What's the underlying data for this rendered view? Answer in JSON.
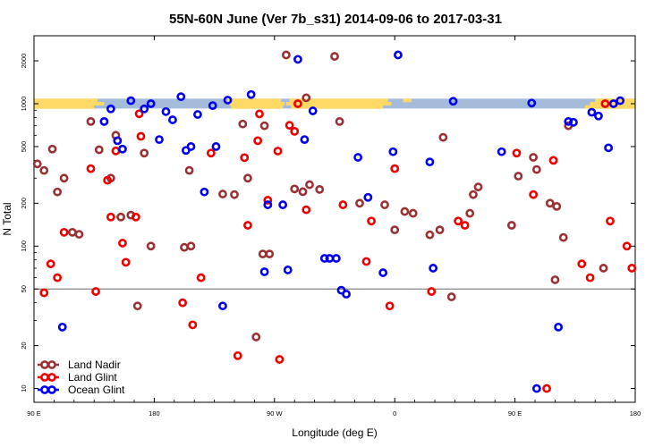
{
  "chart_data": {
    "type": "scatter",
    "title": "55N-60N June (Ver 7b_s31)   2014-09-06 to 2017-03-31",
    "xlabel": "Longitude (deg E)",
    "ylabel": "N Total",
    "xlim": [
      0,
      360
    ],
    "ylim_log": [
      8,
      3000
    ],
    "x_ticks": [
      {
        "value": 0,
        "label": "90 E"
      },
      {
        "value": 72,
        "label": "180"
      },
      {
        "value": 144,
        "label": "90 W"
      },
      {
        "value": 216,
        "label": "0"
      },
      {
        "value": 288,
        "label": "90 E"
      },
      {
        "value": 360,
        "label": "180"
      }
    ],
    "y_ticks": [
      {
        "value": 10,
        "label": "10"
      },
      {
        "value": 20,
        "label": "20"
      },
      {
        "value": 50,
        "label": "50"
      },
      {
        "value": 100,
        "label": "100"
      },
      {
        "value": 200,
        "label": "200"
      },
      {
        "value": 500,
        "label": "500"
      },
      {
        "value": 1000,
        "label": "1000"
      },
      {
        "value": 2000,
        "label": "2000"
      }
    ],
    "reference_line": 50,
    "land_band": {
      "y_range": [
        925,
        1085
      ],
      "land_color": "#FFD966",
      "ocean_color": "#A4BCD9",
      "land_x_ranges": [
        [
          0,
          38
        ],
        [
          0,
          42
        ],
        [
          0,
          36
        ],
        [
          116,
          148
        ],
        [
          117,
          150
        ],
        [
          118,
          149
        ],
        [
          153,
          212
        ],
        [
          151,
          214
        ],
        [
          154,
          209
        ],
        [
          221,
          226
        ],
        [
          333,
          360
        ],
        [
          330,
          360
        ],
        [
          336,
          360
        ]
      ]
    },
    "series": [
      {
        "name": "Land Nadir",
        "color": "#993333",
        "x": [
          2,
          6,
          11,
          14,
          18,
          23,
          27,
          34,
          39,
          46,
          49,
          52,
          58,
          62,
          66,
          70,
          90,
          93,
          94,
          113,
          120,
          125,
          128,
          133,
          137,
          138,
          141,
          151,
          156,
          161,
          163,
          165,
          171,
          180,
          183,
          195,
          210,
          216,
          222,
          227,
          237,
          243,
          245,
          250,
          261,
          263,
          266,
          286,
          290,
          299,
          301,
          309,
          312,
          313,
          317,
          320,
          341
        ],
        "y": [
          378,
          340,
          480,
          240,
          300,
          125,
          121,
          750,
          475,
          300,
          600,
          160,
          165,
          38,
          450,
          100,
          98,
          340,
          100,
          232,
          230,
          720,
          300,
          23,
          88,
          700,
          88,
          2200,
          252,
          241,
          1100,
          270,
          250,
          2150,
          750,
          200,
          195,
          130,
          175,
          170,
          120,
          130,
          580,
          44,
          170,
          230,
          260,
          140,
          310,
          420,
          345,
          200,
          58,
          190,
          115,
          700,
          70
        ]
      },
      {
        "name": "Land Glint",
        "color": "#EE0000",
        "x": [
          6,
          10,
          14,
          18,
          34,
          37,
          44,
          46,
          49,
          53,
          55,
          61,
          63,
          64,
          89,
          95,
          100,
          106,
          122,
          126,
          128,
          134,
          135,
          140,
          146,
          147,
          153,
          156,
          158,
          163,
          185,
          199,
          202,
          213,
          216,
          238,
          254,
          258,
          289,
          299,
          307,
          311,
          328,
          333,
          342,
          345,
          355,
          358
        ],
        "y": [
          47,
          75,
          60,
          125,
          350,
          48,
          290,
          160,
          466,
          105,
          77,
          160,
          850,
          590,
          40,
          28,
          60,
          450,
          17,
          418,
          140,
          550,
          848,
          210,
          465,
          16,
          705,
          640,
          1000,
          180,
          195,
          78,
          150,
          38,
          350,
          48,
          150,
          140,
          450,
          230,
          10,
          400,
          75,
          60,
          1000,
          150,
          100,
          70
        ]
      },
      {
        "name": "Ocean Glint",
        "color": "#0000EE",
        "x": [
          17,
          42,
          46,
          50,
          53,
          58,
          66,
          70,
          75,
          79,
          83,
          88,
          91,
          94,
          98,
          102,
          107,
          109,
          113,
          116,
          130,
          138,
          140,
          149,
          152,
          158,
          162,
          167,
          174,
          177,
          181,
          184,
          187,
          194,
          200,
          209,
          215,
          218,
          237,
          239,
          251,
          280,
          298,
          301,
          314,
          320,
          323,
          334,
          338,
          344,
          347,
          351
        ],
        "y": [
          27,
          750,
          920,
          550,
          480,
          1050,
          920,
          1000,
          560,
          880,
          770,
          1120,
          470,
          500,
          840,
          240,
          970,
          500,
          38,
          1060,
          1160,
          66,
          195,
          195,
          68,
          2050,
          560,
          890,
          82,
          82,
          82,
          49,
          46,
          420,
          220,
          65,
          460,
          2200,
          390,
          70,
          1040,
          460,
          1010,
          10,
          27,
          750,
          740,
          870,
          820,
          490,
          1000,
          1050
        ]
      }
    ],
    "legend": {
      "position": "bottom-left",
      "entries": [
        "Land Nadir",
        "Land Glint",
        "Ocean Glint"
      ]
    }
  }
}
